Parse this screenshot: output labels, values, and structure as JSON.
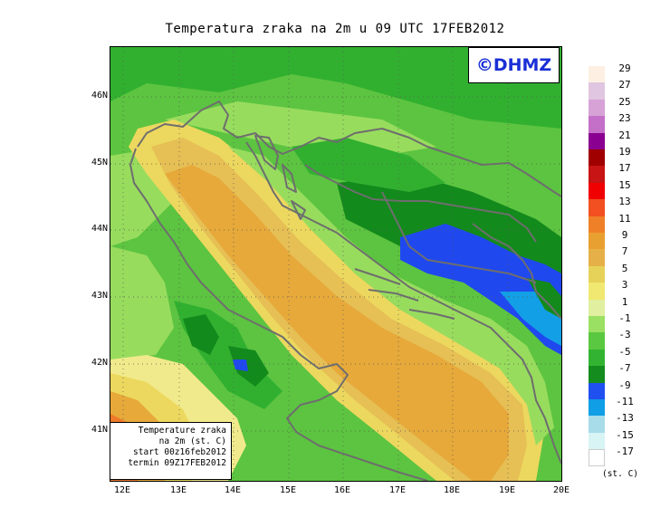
{
  "title": "Temperatura zraka na 2m u 09 UTC 17FEB2012",
  "copyright": "©DHMZ",
  "info": {
    "line1": "Temperature zraka",
    "line2": "na 2m (st. C)",
    "line3": "start 00z16feb2012",
    "line4": "termin 09Z17FEB2012"
  },
  "lat_labels": [
    "46N",
    "45N",
    "44N",
    "43N",
    "42N",
    "41N"
  ],
  "lon_labels": [
    "12E",
    "13E",
    "14E",
    "15E",
    "16E",
    "17E",
    "18E",
    "19E",
    "20E"
  ],
  "legend": {
    "units": "(st. C)",
    "labels": [
      "29",
      "27",
      "25",
      "23",
      "21",
      "19",
      "17",
      "15",
      "13",
      "11",
      "9",
      "7",
      "5",
      "3",
      "1",
      "-1",
      "-3",
      "-5",
      "-7",
      "-9",
      "-11",
      "-13",
      "-15",
      "-17"
    ],
    "colors": [
      "#fdf0e2",
      "#e0c6e0",
      "#d7a3d7",
      "#c46fc8",
      "#8a0090",
      "#a00000",
      "#c81414",
      "#f00000",
      "#f25020",
      "#f08028",
      "#e8a030",
      "#e6b048",
      "#e6d258",
      "#f0e870",
      "#e0f0a0",
      "#9ae062",
      "#5ac840",
      "#32b432",
      "#148c1e",
      "#2050f0",
      "#109ee6",
      "#a8dce8",
      "#d8f4f4",
      "#ffffff"
    ]
  },
  "palette": {
    "orange": "#e6a93a",
    "light_orange": "#e6bf55",
    "yellow": "#ecd85e",
    "pale_yellow": "#f1ea8c",
    "light_green": "#98dc5e",
    "green": "#5cc440",
    "mid_green": "#31b030",
    "dark_green": "#138a1c",
    "blue": "#2048ef",
    "cyan": "#139fe6",
    "red_orange": "#ee7a2a",
    "border": "#6e6e6e"
  }
}
